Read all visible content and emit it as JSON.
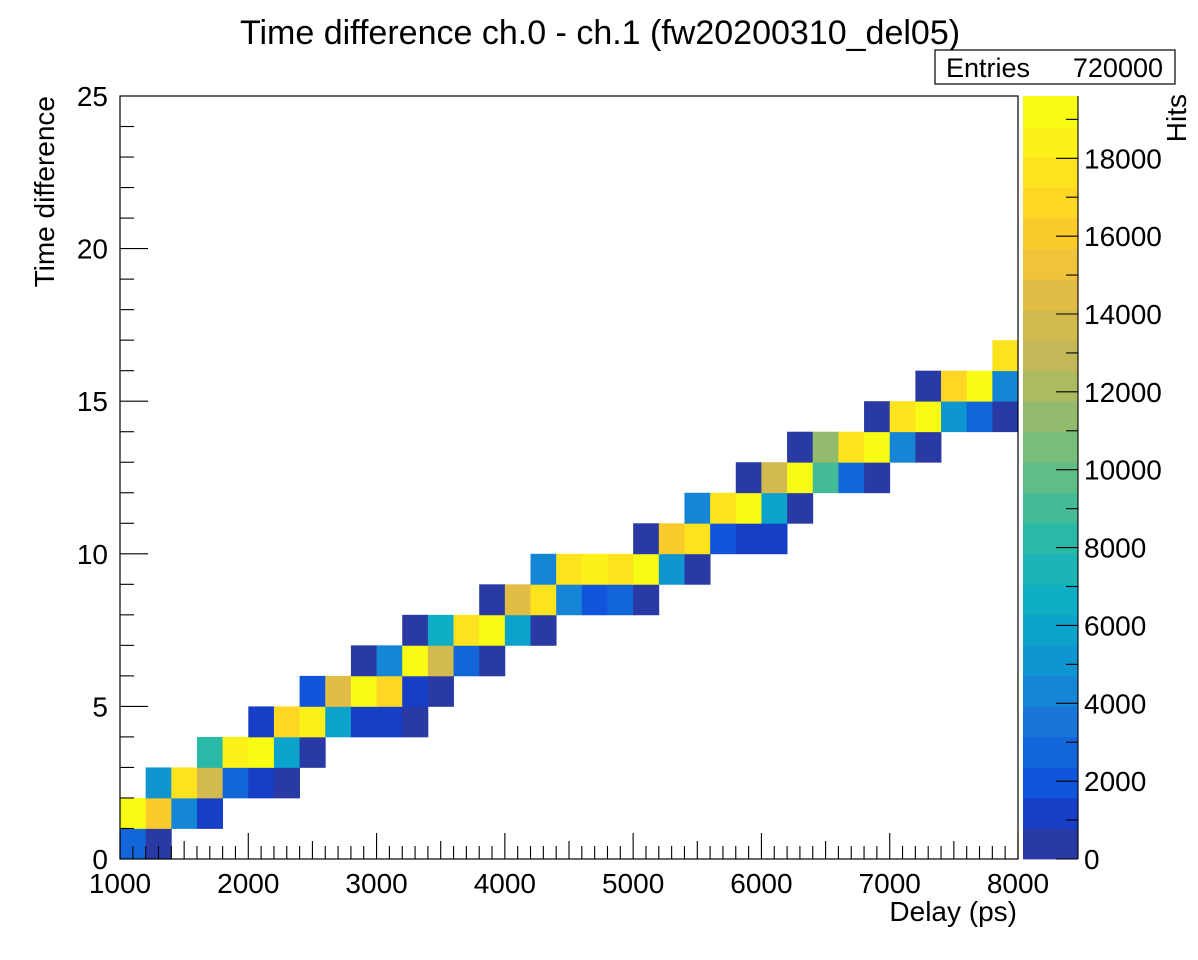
{
  "chart_data": {
    "type": "heatmap",
    "title": "Time difference ch.0 - ch.1 (fw20200310_del05)",
    "xlabel": "Delay (ps)",
    "ylabel": "Time difference",
    "zlabel": "Hits",
    "xlim": [
      1000,
      8000
    ],
    "ylim": [
      0,
      25
    ],
    "zlim": [
      0,
      19600
    ],
    "x_bin_width": 200,
    "y_bin_width": 1,
    "x_ticks": [
      1000,
      2000,
      3000,
      4000,
      5000,
      6000,
      7000,
      8000
    ],
    "y_ticks": [
      0,
      5,
      10,
      15,
      20,
      25
    ],
    "z_ticks": [
      0,
      2000,
      4000,
      6000,
      8000,
      10000,
      12000,
      14000,
      16000,
      18000
    ],
    "stats": {
      "label": "Entries",
      "value": "720000"
    },
    "grid": false,
    "legend": "colorbar-right",
    "palette": [
      "#2a3aa5",
      "#173ec6",
      "#1155dc",
      "#1366da",
      "#1975d9",
      "#1585d5",
      "#0f95d0",
      "#0ba2cb",
      "#0eaec4",
      "#1cb5b7",
      "#2ab8a7",
      "#44bb97",
      "#5fbd88",
      "#78bd7a",
      "#93bb6d",
      "#acba62",
      "#c2b858",
      "#d3ba4f",
      "#e2bd45",
      "#f0c33a",
      "#fbca2b",
      "#fdd724",
      "#fde31e",
      "#fdf217",
      "#f8fc14"
    ],
    "cells": [
      [
        1000,
        0,
        3000
      ],
      [
        1200,
        0,
        600
      ],
      [
        1000,
        1,
        19000
      ],
      [
        1200,
        1,
        16000
      ],
      [
        1400,
        1,
        4000
      ],
      [
        1600,
        1,
        800
      ],
      [
        1200,
        2,
        5000
      ],
      [
        1400,
        2,
        18000
      ],
      [
        1600,
        2,
        13500
      ],
      [
        1800,
        2,
        3000
      ],
      [
        2000,
        2,
        800
      ],
      [
        2200,
        2,
        700
      ],
      [
        1600,
        3,
        8500
      ],
      [
        1800,
        3,
        18500
      ],
      [
        2000,
        3,
        19200
      ],
      [
        2200,
        3,
        5500
      ],
      [
        2400,
        3,
        700
      ],
      [
        2000,
        4,
        800
      ],
      [
        2200,
        4,
        16500
      ],
      [
        2400,
        4,
        18500
      ],
      [
        2600,
        4,
        6000
      ],
      [
        2800,
        4,
        800
      ],
      [
        3000,
        4,
        800
      ],
      [
        3200,
        4,
        700
      ],
      [
        2400,
        5,
        2000
      ],
      [
        2600,
        5,
        14500
      ],
      [
        2800,
        5,
        19200
      ],
      [
        3000,
        5,
        16500
      ],
      [
        3200,
        5,
        800
      ],
      [
        3400,
        5,
        700
      ],
      [
        2800,
        6,
        700
      ],
      [
        3000,
        6,
        4500
      ],
      [
        3200,
        6,
        19200
      ],
      [
        3400,
        6,
        13500
      ],
      [
        3600,
        6,
        2500
      ],
      [
        3800,
        6,
        700
      ],
      [
        3200,
        7,
        700
      ],
      [
        3400,
        7,
        7000
      ],
      [
        3600,
        7,
        17500
      ],
      [
        3800,
        7,
        19200
      ],
      [
        4000,
        7,
        6000
      ],
      [
        4200,
        7,
        700
      ],
      [
        3800,
        8,
        700
      ],
      [
        4000,
        8,
        14500
      ],
      [
        4200,
        8,
        18000
      ],
      [
        4400,
        8,
        4000
      ],
      [
        4600,
        8,
        2300
      ],
      [
        4800,
        8,
        2600
      ],
      [
        5000,
        8,
        700
      ],
      [
        4200,
        9,
        4000
      ],
      [
        4400,
        9,
        17500
      ],
      [
        4600,
        9,
        18500
      ],
      [
        4800,
        9,
        17500
      ],
      [
        5000,
        9,
        19200
      ],
      [
        5200,
        9,
        5000
      ],
      [
        5400,
        9,
        700
      ],
      [
        5000,
        10,
        700
      ],
      [
        5200,
        10,
        16000
      ],
      [
        5400,
        10,
        18000
      ],
      [
        5600,
        10,
        2300
      ],
      [
        5800,
        10,
        800
      ],
      [
        6000,
        10,
        800
      ],
      [
        5400,
        11,
        4000
      ],
      [
        5600,
        11,
        17500
      ],
      [
        5800,
        11,
        19200
      ],
      [
        6000,
        11,
        6000
      ],
      [
        6200,
        11,
        700
      ],
      [
        5800,
        12,
        700
      ],
      [
        6000,
        12,
        13500
      ],
      [
        6200,
        12,
        19200
      ],
      [
        6400,
        12,
        9000
      ],
      [
        6600,
        12,
        2500
      ],
      [
        6800,
        12,
        700
      ],
      [
        6200,
        13,
        700
      ],
      [
        6400,
        13,
        11000
      ],
      [
        6600,
        13,
        17500
      ],
      [
        6800,
        13,
        19200
      ],
      [
        7000,
        13,
        4000
      ],
      [
        7200,
        13,
        700
      ],
      [
        6800,
        14,
        700
      ],
      [
        7000,
        14,
        17500
      ],
      [
        7200,
        14,
        19200
      ],
      [
        7400,
        14,
        5000
      ],
      [
        7600,
        14,
        2800
      ],
      [
        7800,
        14,
        700
      ],
      [
        7200,
        15,
        700
      ],
      [
        7400,
        15,
        16500
      ],
      [
        7600,
        15,
        19200
      ],
      [
        7800,
        15,
        4000
      ],
      [
        7800,
        16,
        17500
      ]
    ]
  }
}
